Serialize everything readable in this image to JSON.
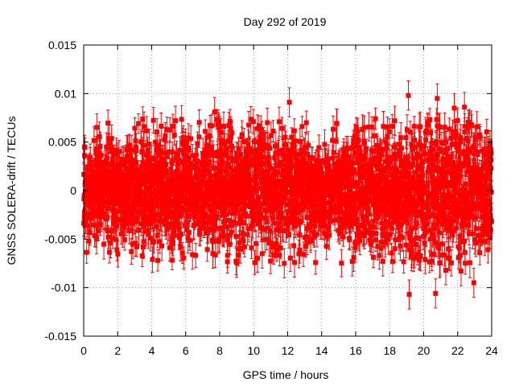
{
  "chart_data": {
    "type": "scatter",
    "title": "Day 292 of 2019",
    "xlabel": "GPS time / hours",
    "ylabel": "GNSS SOLERA-drift / TECUs",
    "xlim": [
      0,
      24
    ],
    "ylim": [
      -0.015,
      0.015
    ],
    "x_ticks": [
      0,
      2,
      4,
      6,
      8,
      10,
      12,
      14,
      16,
      18,
      20,
      22,
      24
    ],
    "x_tick_labels": [
      "0",
      "2",
      "4",
      "6",
      "8",
      "10",
      "12",
      "14",
      "16",
      "18",
      "20",
      "22",
      "24"
    ],
    "y_ticks": [
      -0.015,
      -0.01,
      -0.005,
      0,
      0.005,
      0.01,
      0.015
    ],
    "y_tick_labels": [
      "-0.015",
      "-0.01",
      "-0.005",
      "0",
      "0.005",
      "0.01",
      "0.015"
    ],
    "grid": true,
    "series": [
      {
        "name": "SOLERA drift",
        "color": "#ff0000",
        "marker": "square",
        "error_bars": true,
        "notable_points": [
          {
            "x": 0.05,
            "y": 0.0045,
            "err": 0.0012
          },
          {
            "x": 0.3,
            "y": -0.0052,
            "err": 0.0012
          },
          {
            "x": 1.5,
            "y": 0.0053,
            "err": 0.0015
          },
          {
            "x": 3.55,
            "y": 0.0066,
            "err": 0.0015
          },
          {
            "x": 3.5,
            "y": -0.0058,
            "err": 0.0012
          },
          {
            "x": 4.6,
            "y": -0.0057,
            "err": 0.0015
          },
          {
            "x": 5.4,
            "y": 0.0072,
            "err": 0.0015
          },
          {
            "x": 6.4,
            "y": -0.0066,
            "err": 0.0015
          },
          {
            "x": 7.7,
            "y": 0.0081,
            "err": 0.0015
          },
          {
            "x": 7.6,
            "y": -0.0065,
            "err": 0.0015
          },
          {
            "x": 8.65,
            "y": 0.0064,
            "err": 0.0012
          },
          {
            "x": 10.8,
            "y": 0.007,
            "err": 0.0015
          },
          {
            "x": 10.5,
            "y": -0.0065,
            "err": 0.0015
          },
          {
            "x": 11.5,
            "y": 0.0071,
            "err": 0.0015
          },
          {
            "x": 12.1,
            "y": 0.0091,
            "err": 0.0015
          },
          {
            "x": 11.8,
            "y": -0.0075,
            "err": 0.0015
          },
          {
            "x": 12.4,
            "y": -0.0074,
            "err": 0.0015
          },
          {
            "x": 13.1,
            "y": 0.007,
            "err": 0.0012
          },
          {
            "x": 14.9,
            "y": 0.0069,
            "err": 0.0015
          },
          {
            "x": 15.8,
            "y": -0.0073,
            "err": 0.0015
          },
          {
            "x": 16.5,
            "y": 0.0065,
            "err": 0.0012
          },
          {
            "x": 17.6,
            "y": -0.0073,
            "err": 0.0015
          },
          {
            "x": 18.3,
            "y": 0.0072,
            "err": 0.0015
          },
          {
            "x": 19.1,
            "y": 0.0098,
            "err": 0.0015
          },
          {
            "x": 19.15,
            "y": -0.0107,
            "err": 0.0015
          },
          {
            "x": 19.8,
            "y": 0.0066,
            "err": 0.0015
          },
          {
            "x": 20.8,
            "y": 0.0095,
            "err": 0.0015
          },
          {
            "x": 20.7,
            "y": -0.0106,
            "err": 0.0015
          },
          {
            "x": 21.3,
            "y": -0.0082,
            "err": 0.0015
          },
          {
            "x": 21.8,
            "y": 0.0085,
            "err": 0.0015
          },
          {
            "x": 22.4,
            "y": 0.0086,
            "err": 0.0015
          },
          {
            "x": 22.2,
            "y": -0.0083,
            "err": 0.0015
          },
          {
            "x": 22.95,
            "y": -0.0095,
            "err": 0.0015
          },
          {
            "x": 23.8,
            "y": 0.0044,
            "err": 0.0012
          },
          {
            "x": 23.9,
            "y": -0.0048,
            "err": 0.0012
          }
        ],
        "noise_envelope": [
          {
            "x": 0,
            "std": 0.0025
          },
          {
            "x": 4,
            "std": 0.0028
          },
          {
            "x": 8,
            "std": 0.0031
          },
          {
            "x": 12,
            "std": 0.003
          },
          {
            "x": 14,
            "std": 0.0024
          },
          {
            "x": 17,
            "std": 0.0028
          },
          {
            "x": 20,
            "std": 0.0034
          },
          {
            "x": 22,
            "std": 0.0036
          },
          {
            "x": 24,
            "std": 0.0032
          }
        ],
        "sample_interval_hours": 0.0083,
        "point_error": 0.0012
      }
    ]
  }
}
